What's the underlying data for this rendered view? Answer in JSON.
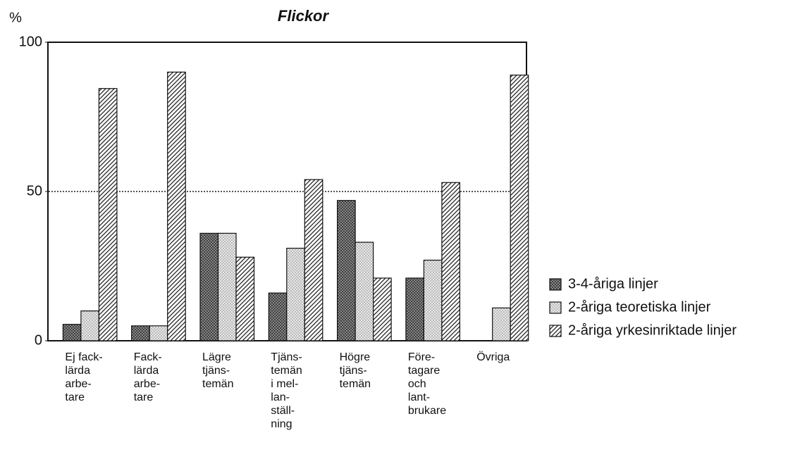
{
  "chart_data": {
    "type": "bar",
    "title": "Flickor",
    "y_label": "%",
    "categories": [
      "Ej fack-\nlärda\narbe-\ntare",
      "Fack-\nlärda\narbe-\ntare",
      "Lägre\ntjäns-\ntemän",
      "Tjäns-\ntemän\ni mel-\nlan-\nställ-\nning",
      "Högre\ntjäns-\ntemän",
      "Före-\ntagare\noch\nlant-\nbrukare",
      "Övriga"
    ],
    "series": [
      {
        "name": "3-4-åriga linjer",
        "color": "#7a7a7a",
        "pattern": "cross",
        "values": [
          5.5,
          5,
          36,
          16,
          47,
          21,
          null
        ]
      },
      {
        "name": "2-åriga teoretiska linjer",
        "color": "#dcdcdc",
        "pattern": "dots",
        "values": [
          10,
          5,
          36,
          31,
          33,
          27,
          11
        ]
      },
      {
        "name": "2-åriga yrkesinriktade linjer",
        "color": "#ffffff",
        "pattern": "hatch",
        "values": [
          84.5,
          90,
          28,
          54,
          21,
          53,
          89
        ]
      }
    ],
    "ylim": [
      0,
      100
    ],
    "yticks": [
      0,
      50,
      100
    ],
    "reference_line": 50,
    "grid": false,
    "legend": "right"
  }
}
